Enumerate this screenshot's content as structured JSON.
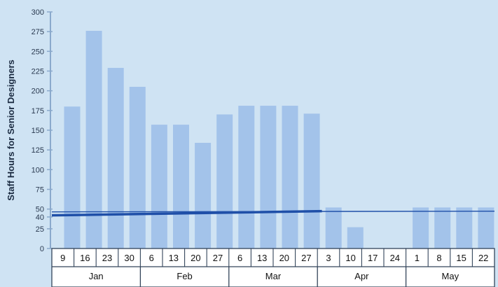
{
  "chart_data": {
    "type": "bar",
    "ylabel": "Staff Hours for Senior Designers",
    "ylim": [
      0,
      300
    ],
    "yticks": [
      0,
      25,
      40,
      50,
      75,
      100,
      125,
      150,
      175,
      200,
      225,
      250,
      275,
      300
    ],
    "categories": [
      "9",
      "16",
      "23",
      "30",
      "6",
      "13",
      "20",
      "27",
      "6",
      "13",
      "20",
      "27",
      "3",
      "10",
      "17",
      "24",
      "1",
      "8",
      "15",
      "22"
    ],
    "values": [
      180,
      276,
      229,
      205,
      157,
      157,
      134,
      170,
      181,
      181,
      181,
      171,
      52,
      27,
      0,
      0,
      52,
      52,
      52,
      52
    ],
    "month_groups": [
      {
        "label": "Jan",
        "count": 4
      },
      {
        "label": "Feb",
        "count": 4
      },
      {
        "label": "Mar",
        "count": 4
      },
      {
        "label": "Apr",
        "count": 4
      },
      {
        "label": "May",
        "count": 4
      }
    ],
    "reference_line": {
      "value": 42,
      "thick_segment_categories": [
        0,
        11
      ],
      "color": "#1f4fa8"
    },
    "colors": {
      "bar": "#a3c3ea",
      "background": "#cfe3f3",
      "axis": "#8aa9cc",
      "line": "#1f4fa8"
    },
    "grid": false
  }
}
